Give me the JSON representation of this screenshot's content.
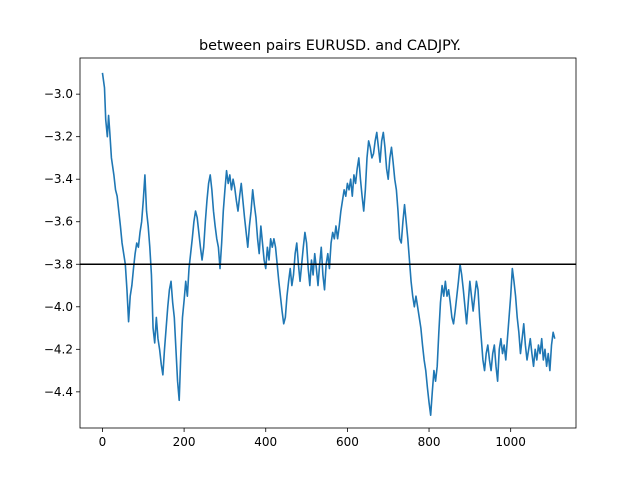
{
  "chart_data": {
    "type": "line",
    "title": "between pairs EURUSD. and CADJPY.",
    "xlabel": "",
    "ylabel": "",
    "xlim": [
      -55,
      1160
    ],
    "ylim": [
      -4.57,
      -2.83
    ],
    "x_ticks": [
      0,
      200,
      400,
      600,
      800,
      1000
    ],
    "y_ticks": [
      -3.0,
      -3.2,
      -3.4,
      -3.6,
      -3.8,
      -4.0,
      -4.2,
      -4.4
    ],
    "y_tick_labels": [
      "−3.0",
      "−3.2",
      "−3.4",
      "−3.6",
      "−3.8",
      "−4.0",
      "−4.2",
      "−4.4"
    ],
    "grid": false,
    "colors": {
      "series": "#1f77b4",
      "hline": "#000000"
    },
    "hline": {
      "y": -3.8
    },
    "series": [
      {
        "points": [
          [
            0,
            -2.9
          ],
          [
            5,
            -2.97
          ],
          [
            8,
            -3.12
          ],
          [
            12,
            -3.2
          ],
          [
            15,
            -3.1
          ],
          [
            18,
            -3.18
          ],
          [
            22,
            -3.3
          ],
          [
            28,
            -3.38
          ],
          [
            32,
            -3.45
          ],
          [
            36,
            -3.48
          ],
          [
            40,
            -3.55
          ],
          [
            44,
            -3.62
          ],
          [
            48,
            -3.7
          ],
          [
            52,
            -3.75
          ],
          [
            56,
            -3.8
          ],
          [
            60,
            -3.92
          ],
          [
            64,
            -4.07
          ],
          [
            68,
            -3.95
          ],
          [
            72,
            -3.9
          ],
          [
            76,
            -3.82
          ],
          [
            80,
            -3.75
          ],
          [
            84,
            -3.7
          ],
          [
            88,
            -3.72
          ],
          [
            92,
            -3.65
          ],
          [
            96,
            -3.6
          ],
          [
            100,
            -3.5
          ],
          [
            104,
            -3.38
          ],
          [
            108,
            -3.55
          ],
          [
            112,
            -3.62
          ],
          [
            116,
            -3.72
          ],
          [
            120,
            -3.85
          ],
          [
            124,
            -4.1
          ],
          [
            128,
            -4.17
          ],
          [
            132,
            -4.05
          ],
          [
            136,
            -4.15
          ],
          [
            140,
            -4.2
          ],
          [
            144,
            -4.27
          ],
          [
            148,
            -4.32
          ],
          [
            152,
            -4.2
          ],
          [
            156,
            -4.1
          ],
          [
            160,
            -4.0
          ],
          [
            164,
            -3.92
          ],
          [
            168,
            -3.88
          ],
          [
            172,
            -3.98
          ],
          [
            176,
            -4.05
          ],
          [
            180,
            -4.2
          ],
          [
            184,
            -4.35
          ],
          [
            188,
            -4.44
          ],
          [
            192,
            -4.22
          ],
          [
            196,
            -4.05
          ],
          [
            200,
            -3.97
          ],
          [
            204,
            -3.88
          ],
          [
            208,
            -3.95
          ],
          [
            212,
            -3.82
          ],
          [
            216,
            -3.75
          ],
          [
            220,
            -3.68
          ],
          [
            224,
            -3.6
          ],
          [
            228,
            -3.55
          ],
          [
            232,
            -3.58
          ],
          [
            236,
            -3.65
          ],
          [
            240,
            -3.72
          ],
          [
            244,
            -3.78
          ],
          [
            248,
            -3.72
          ],
          [
            252,
            -3.6
          ],
          [
            256,
            -3.5
          ],
          [
            260,
            -3.42
          ],
          [
            264,
            -3.38
          ],
          [
            268,
            -3.45
          ],
          [
            272,
            -3.55
          ],
          [
            276,
            -3.62
          ],
          [
            280,
            -3.68
          ],
          [
            284,
            -3.72
          ],
          [
            288,
            -3.82
          ],
          [
            292,
            -3.7
          ],
          [
            296,
            -3.55
          ],
          [
            300,
            -3.45
          ],
          [
            304,
            -3.36
          ],
          [
            308,
            -3.42
          ],
          [
            312,
            -3.38
          ],
          [
            316,
            -3.45
          ],
          [
            320,
            -3.4
          ],
          [
            324,
            -3.44
          ],
          [
            328,
            -3.5
          ],
          [
            332,
            -3.55
          ],
          [
            336,
            -3.48
          ],
          [
            340,
            -3.42
          ],
          [
            344,
            -3.5
          ],
          [
            348,
            -3.58
          ],
          [
            352,
            -3.65
          ],
          [
            356,
            -3.72
          ],
          [
            360,
            -3.62
          ],
          [
            364,
            -3.55
          ],
          [
            368,
            -3.45
          ],
          [
            372,
            -3.52
          ],
          [
            376,
            -3.58
          ],
          [
            380,
            -3.68
          ],
          [
            384,
            -3.75
          ],
          [
            388,
            -3.62
          ],
          [
            392,
            -3.7
          ],
          [
            396,
            -3.78
          ],
          [
            400,
            -3.82
          ],
          [
            404,
            -3.72
          ],
          [
            408,
            -3.78
          ],
          [
            412,
            -3.68
          ],
          [
            416,
            -3.72
          ],
          [
            420,
            -3.68
          ],
          [
            424,
            -3.72
          ],
          [
            428,
            -3.8
          ],
          [
            432,
            -3.88
          ],
          [
            436,
            -3.95
          ],
          [
            440,
            -4.02
          ],
          [
            444,
            -4.08
          ],
          [
            448,
            -4.05
          ],
          [
            452,
            -3.95
          ],
          [
            456,
            -3.88
          ],
          [
            460,
            -3.82
          ],
          [
            464,
            -3.9
          ],
          [
            468,
            -3.85
          ],
          [
            472,
            -3.75
          ],
          [
            476,
            -3.7
          ],
          [
            480,
            -3.8
          ],
          [
            484,
            -3.88
          ],
          [
            488,
            -3.8
          ],
          [
            492,
            -3.72
          ],
          [
            496,
            -3.65
          ],
          [
            500,
            -3.7
          ],
          [
            504,
            -3.82
          ],
          [
            508,
            -3.9
          ],
          [
            512,
            -3.78
          ],
          [
            516,
            -3.85
          ],
          [
            520,
            -3.75
          ],
          [
            524,
            -3.82
          ],
          [
            528,
            -3.9
          ],
          [
            532,
            -3.8
          ],
          [
            536,
            -3.72
          ],
          [
            540,
            -3.85
          ],
          [
            544,
            -3.92
          ],
          [
            548,
            -3.8
          ],
          [
            552,
            -3.75
          ],
          [
            556,
            -3.82
          ],
          [
            560,
            -3.7
          ],
          [
            564,
            -3.65
          ],
          [
            568,
            -3.68
          ],
          [
            572,
            -3.62
          ],
          [
            576,
            -3.68
          ],
          [
            580,
            -3.62
          ],
          [
            584,
            -3.55
          ],
          [
            588,
            -3.5
          ],
          [
            592,
            -3.45
          ],
          [
            596,
            -3.48
          ],
          [
            600,
            -3.42
          ],
          [
            604,
            -3.45
          ],
          [
            608,
            -3.4
          ],
          [
            612,
            -3.48
          ],
          [
            616,
            -3.38
          ],
          [
            620,
            -3.42
          ],
          [
            624,
            -3.35
          ],
          [
            628,
            -3.3
          ],
          [
            632,
            -3.4
          ],
          [
            636,
            -3.48
          ],
          [
            640,
            -3.55
          ],
          [
            644,
            -3.45
          ],
          [
            648,
            -3.3
          ],
          [
            652,
            -3.22
          ],
          [
            656,
            -3.25
          ],
          [
            660,
            -3.3
          ],
          [
            664,
            -3.28
          ],
          [
            668,
            -3.22
          ],
          [
            672,
            -3.18
          ],
          [
            676,
            -3.25
          ],
          [
            680,
            -3.32
          ],
          [
            684,
            -3.22
          ],
          [
            688,
            -3.18
          ],
          [
            692,
            -3.25
          ],
          [
            696,
            -3.35
          ],
          [
            700,
            -3.4
          ],
          [
            704,
            -3.3
          ],
          [
            708,
            -3.25
          ],
          [
            712,
            -3.32
          ],
          [
            716,
            -3.4
          ],
          [
            720,
            -3.45
          ],
          [
            724,
            -3.55
          ],
          [
            728,
            -3.68
          ],
          [
            732,
            -3.7
          ],
          [
            736,
            -3.6
          ],
          [
            740,
            -3.52
          ],
          [
            744,
            -3.6
          ],
          [
            748,
            -3.68
          ],
          [
            752,
            -3.78
          ],
          [
            756,
            -3.88
          ],
          [
            760,
            -3.95
          ],
          [
            764,
            -4.0
          ],
          [
            768,
            -3.95
          ],
          [
            772,
            -4.0
          ],
          [
            776,
            -4.05
          ],
          [
            780,
            -4.1
          ],
          [
            784,
            -4.18
          ],
          [
            788,
            -4.25
          ],
          [
            792,
            -4.3
          ],
          [
            796,
            -4.38
          ],
          [
            800,
            -4.45
          ],
          [
            804,
            -4.51
          ],
          [
            808,
            -4.4
          ],
          [
            812,
            -4.3
          ],
          [
            816,
            -4.35
          ],
          [
            820,
            -4.28
          ],
          [
            824,
            -4.12
          ],
          [
            828,
            -3.98
          ],
          [
            832,
            -3.9
          ],
          [
            836,
            -3.95
          ],
          [
            840,
            -3.88
          ],
          [
            844,
            -3.95
          ],
          [
            848,
            -3.92
          ],
          [
            852,
            -3.98
          ],
          [
            856,
            -4.05
          ],
          [
            860,
            -4.08
          ],
          [
            864,
            -4.02
          ],
          [
            868,
            -3.95
          ],
          [
            872,
            -3.88
          ],
          [
            876,
            -3.8
          ],
          [
            880,
            -3.85
          ],
          [
            884,
            -3.92
          ],
          [
            888,
            -4.0
          ],
          [
            892,
            -4.08
          ],
          [
            896,
            -3.98
          ],
          [
            900,
            -3.88
          ],
          [
            904,
            -3.95
          ],
          [
            908,
            -4.02
          ],
          [
            912,
            -3.95
          ],
          [
            916,
            -3.88
          ],
          [
            920,
            -3.92
          ],
          [
            924,
            -4.05
          ],
          [
            928,
            -4.15
          ],
          [
            932,
            -4.25
          ],
          [
            936,
            -4.3
          ],
          [
            940,
            -4.22
          ],
          [
            944,
            -4.18
          ],
          [
            948,
            -4.25
          ],
          [
            952,
            -4.3
          ],
          [
            956,
            -4.22
          ],
          [
            960,
            -4.18
          ],
          [
            964,
            -4.28
          ],
          [
            968,
            -4.35
          ],
          [
            972,
            -4.2
          ],
          [
            976,
            -4.15
          ],
          [
            980,
            -4.22
          ],
          [
            984,
            -4.18
          ],
          [
            988,
            -4.25
          ],
          [
            992,
            -4.15
          ],
          [
            996,
            -4.05
          ],
          [
            1000,
            -3.95
          ],
          [
            1004,
            -3.82
          ],
          [
            1008,
            -3.88
          ],
          [
            1012,
            -3.95
          ],
          [
            1016,
            -4.05
          ],
          [
            1020,
            -4.12
          ],
          [
            1024,
            -4.22
          ],
          [
            1028,
            -4.15
          ],
          [
            1032,
            -4.08
          ],
          [
            1036,
            -4.18
          ],
          [
            1040,
            -4.25
          ],
          [
            1044,
            -4.2
          ],
          [
            1048,
            -4.15
          ],
          [
            1052,
            -4.22
          ],
          [
            1056,
            -4.28
          ],
          [
            1060,
            -4.2
          ],
          [
            1064,
            -4.25
          ],
          [
            1068,
            -4.18
          ],
          [
            1072,
            -4.22
          ],
          [
            1076,
            -4.15
          ],
          [
            1080,
            -4.25
          ],
          [
            1084,
            -4.2
          ],
          [
            1088,
            -4.28
          ],
          [
            1092,
            -4.22
          ],
          [
            1096,
            -4.3
          ],
          [
            1100,
            -4.18
          ],
          [
            1104,
            -4.12
          ],
          [
            1108,
            -4.15
          ]
        ]
      }
    ]
  }
}
